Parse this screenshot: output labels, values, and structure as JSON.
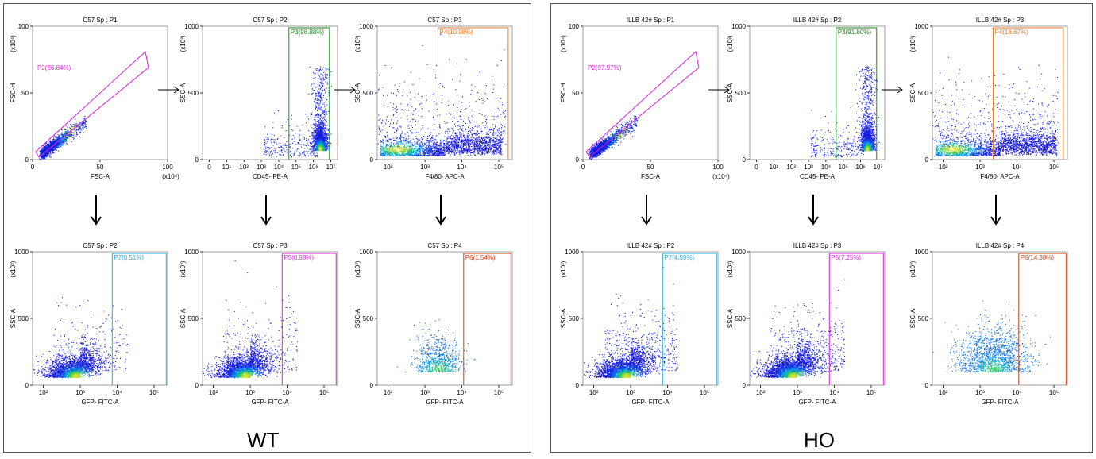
{
  "groups": [
    {
      "label": "WT",
      "plots": [
        {
          "title": "C57 Sp : P1",
          "xlabel": "FSC-A",
          "ylabel": "FSC-H",
          "xscale": "linear",
          "xexp": "(x10⁴)",
          "yexp": "(x10⁴)",
          "yticks": [
            "0",
            "50",
            "100"
          ],
          "xticks": [
            "0",
            "50",
            "100"
          ],
          "gate": {
            "label": "P2(96.84%)",
            "color": "#e020e0",
            "kind": "poly"
          },
          "cloud": "diag"
        },
        {
          "title": "C57 Sp : P2",
          "xlabel": "CD45- PE-A",
          "ylabel": "SSC-A",
          "xscale": "log",
          "xexp": "",
          "yexp": "(x10³)",
          "yticks": [
            "0",
            "500",
            "1000"
          ],
          "xticks": [
            "0",
            "10¹",
            "10²",
            "10³",
            "10⁴",
            "10⁵",
            "10⁶",
            "10⁷"
          ],
          "gate": {
            "label": "P3(98.88%)",
            "color": "#1a8a1a",
            "kind": "rect",
            "xfrom": 0.64,
            "xto": 0.94
          },
          "cloud": "cd45"
        },
        {
          "title": "C57 Sp : P3",
          "xlabel": "F4/80- APC-A",
          "ylabel": "SSC-A",
          "xscale": "log",
          "xexp": "",
          "yexp": "(x10³)",
          "yticks": [
            "0",
            "500",
            "1000"
          ],
          "xticks": [
            "10²",
            "10³",
            "10⁴",
            "10⁵"
          ],
          "gate": {
            "label": "P4(10.98%)",
            "color": "#f07a20",
            "kind": "rect",
            "xfrom": 0.45,
            "xto": 0.97
          },
          "cloud": "f480"
        },
        {
          "title": "C57 Sp : P2",
          "xlabel": "GFP- FITC-A",
          "ylabel": "SSC-A",
          "xscale": "log",
          "xexp": "",
          "yexp": "(x10³)",
          "yticks": [
            "0",
            "500",
            "1000"
          ],
          "xticks": [
            "10²",
            "10³",
            "10⁴",
            "10⁵"
          ],
          "gate": {
            "label": "P7(0.51%)",
            "color": "#20b0e0",
            "kind": "rect",
            "xfrom": 0.59,
            "xto": 0.99
          },
          "cloud": "gfp"
        },
        {
          "title": "C57 Sp : P3",
          "xlabel": "GFP- FITC-A",
          "ylabel": "SSC-A",
          "xscale": "log",
          "xexp": "",
          "yexp": "(x10³)",
          "yticks": [
            "0",
            "500",
            "1000"
          ],
          "xticks": [
            "10²",
            "10³",
            "10⁴",
            "10⁵"
          ],
          "gate": {
            "label": "P5(0.98%)",
            "color": "#e020e0",
            "kind": "rect",
            "xfrom": 0.59,
            "xto": 0.99
          },
          "cloud": "gfp"
        },
        {
          "title": "C57 Sp : P4",
          "xlabel": "GFP- FITC-A",
          "ylabel": "SSC-A",
          "xscale": "log",
          "xexp": "",
          "yexp": "(x10³)",
          "yticks": [
            "0",
            "500",
            "1000"
          ],
          "xticks": [
            "10²",
            "10³",
            "10⁴",
            "10⁵"
          ],
          "gate": {
            "label": "P6(1.54%)",
            "color": "#d04010",
            "kind": "rect",
            "xfrom": 0.64,
            "xto": 0.99
          },
          "cloud": "gfpsparse"
        }
      ]
    },
    {
      "label": "HO",
      "plots": [
        {
          "title": "ILLB 42# Sp : P1",
          "xlabel": "FSC-A",
          "ylabel": "FSC-H",
          "xscale": "linear",
          "xexp": "(x10⁴)",
          "yexp": "(x10⁴)",
          "yticks": [
            "0",
            "50",
            "100"
          ],
          "xticks": [
            "0",
            "50",
            "100"
          ],
          "gate": {
            "label": "P2(97.97%)",
            "color": "#e020e0",
            "kind": "poly"
          },
          "cloud": "diag"
        },
        {
          "title": "ILLB 42# Sp : P2",
          "xlabel": "CD45- PE-A",
          "ylabel": "SSC-A",
          "xscale": "log",
          "xexp": "",
          "yexp": "(x10³)",
          "yticks": [
            "0",
            "500",
            "1000"
          ],
          "xticks": [
            "0",
            "10¹",
            "10²",
            "10³",
            "10⁴",
            "10⁵",
            "10⁶",
            "10⁷"
          ],
          "gate": {
            "label": "P3(91.80%)",
            "color": "#1a8a1a",
            "kind": "rect",
            "xfrom": 0.64,
            "xto": 0.94
          },
          "cloud": "cd45"
        },
        {
          "title": "ILLB 42# Sp : P3",
          "xlabel": "F4/80- APC-A",
          "ylabel": "SSC-A",
          "xscale": "log",
          "xexp": "",
          "yexp": "(x10³)",
          "yticks": [
            "0",
            "500",
            "1000"
          ],
          "xticks": [
            "10²",
            "10³",
            "10⁴",
            "10⁵"
          ],
          "gate": {
            "label": "P4(18.67%)",
            "color": "#f07a20",
            "kind": "rect",
            "xfrom": 0.45,
            "xto": 0.97
          },
          "cloud": "f480"
        },
        {
          "title": "ILLB 42# Sp : P2",
          "xlabel": "GFP- FITC-A",
          "ylabel": "SSC-A",
          "xscale": "log",
          "xexp": "",
          "yexp": "(x10³)",
          "yticks": [
            "0",
            "500",
            "1000"
          ],
          "xticks": [
            "10²",
            "10³",
            "10⁴",
            "10⁵"
          ],
          "gate": {
            "label": "P7(4.59%)",
            "color": "#20b0e0",
            "kind": "rect",
            "xfrom": 0.59,
            "xto": 0.99
          },
          "cloud": "gfpho"
        },
        {
          "title": "ILLB 42# Sp : P3",
          "xlabel": "GFP- FITC-A",
          "ylabel": "SSC-A",
          "xscale": "log",
          "xexp": "",
          "yexp": "(x10³)",
          "yticks": [
            "0",
            "500",
            "1000"
          ],
          "xticks": [
            "10²",
            "10³",
            "10⁴",
            "10⁵"
          ],
          "gate": {
            "label": "P5(7.25%)",
            "color": "#e020e0",
            "kind": "rect",
            "xfrom": 0.59,
            "xto": 0.99
          },
          "cloud": "gfpho"
        },
        {
          "title": "ILLB 42# Sp : P4",
          "xlabel": "GFP- FITC-A",
          "ylabel": "SSC-A",
          "xscale": "log",
          "xexp": "",
          "yexp": "(x10³)",
          "yticks": [
            "0",
            "500",
            "1000"
          ],
          "xticks": [
            "10²",
            "10³",
            "10⁴",
            "10⁵"
          ],
          "gate": {
            "label": "P6(14.38%)",
            "color": "#d04010",
            "kind": "rect",
            "xfrom": 0.64,
            "xto": 0.99
          },
          "cloud": "gfpsparseho"
        }
      ]
    }
  ],
  "chart_data": {
    "type": "scatter",
    "description_type": "flow cytometry dot plots with gates",
    "gates": [
      {
        "group": "WT",
        "name": "P2",
        "percent": 96.84
      },
      {
        "group": "WT",
        "name": "P3",
        "percent": 98.88
      },
      {
        "group": "WT",
        "name": "P4",
        "percent": 10.98
      },
      {
        "group": "WT",
        "name": "P7",
        "percent": 0.51
      },
      {
        "group": "WT",
        "name": "P5",
        "percent": 0.98
      },
      {
        "group": "WT",
        "name": "P6",
        "percent": 1.54
      },
      {
        "group": "HO",
        "name": "P2",
        "percent": 97.97
      },
      {
        "group": "HO",
        "name": "P3",
        "percent": 91.8
      },
      {
        "group": "HO",
        "name": "P4",
        "percent": 18.67
      },
      {
        "group": "HO",
        "name": "P7",
        "percent": 4.59
      },
      {
        "group": "HO",
        "name": "P5",
        "percent": 7.25
      },
      {
        "group": "HO",
        "name": "P6",
        "percent": 14.38
      }
    ]
  }
}
